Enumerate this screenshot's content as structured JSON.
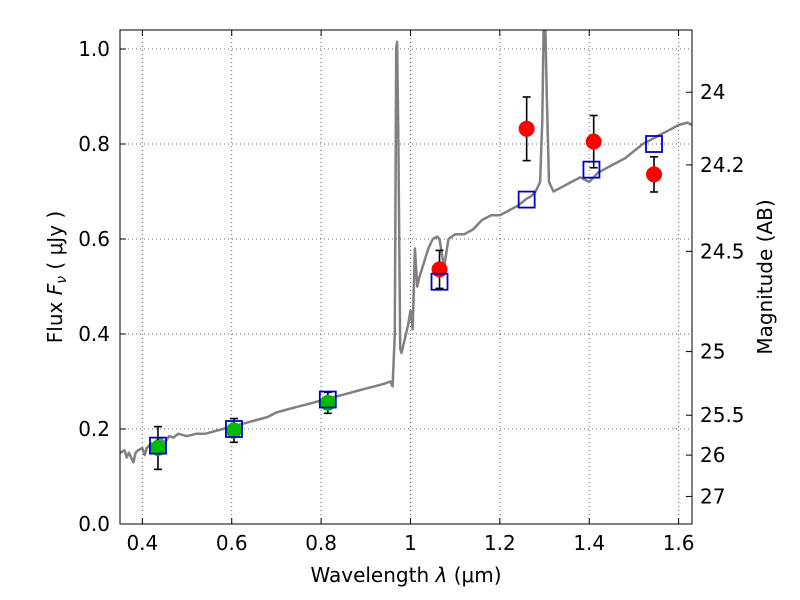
{
  "chart_data": {
    "type": "scatter",
    "title": "",
    "xlabel": "Wavelength",
    "xlabel_symbol": "λ",
    "xlabel_unit": "(μm)",
    "ylabel": "Flux",
    "ylabel_symbol": "F",
    "ylabel_subscript": "ν",
    "ylabel_unit": "( μJy )",
    "ylabel_right": "Magnitude (AB)",
    "xlim": [
      0.35,
      1.63
    ],
    "ylim": [
      0.0,
      1.04
    ],
    "grid": true,
    "x_ticks": [
      0.4,
      0.6,
      0.8,
      1.0,
      1.2,
      1.4,
      1.6
    ],
    "x_tick_labels": [
      "0.4",
      "0.6",
      "0.8",
      "1",
      "1.2",
      "1.4",
      "1.6"
    ],
    "y_ticks": [
      0.0,
      0.2,
      0.4,
      0.6,
      0.8,
      1.0
    ],
    "y_tick_labels": [
      "0.0",
      "0.2",
      "0.4",
      "0.6",
      "0.8",
      "1.0"
    ],
    "right_ticks": [
      {
        "label": "24",
        "flux": 0.909
      },
      {
        "label": "24.2",
        "flux": 0.756
      },
      {
        "label": "24.5",
        "flux": 0.574
      },
      {
        "label": "25",
        "flux": 0.363
      },
      {
        "label": "25.5",
        "flux": 0.229
      },
      {
        "label": "26",
        "flux": 0.145
      },
      {
        "label": "27",
        "flux": 0.058
      }
    ],
    "series": [
      {
        "name": "",
        "kind": "line",
        "color": "#808080",
        "points": [
          [
            0.35,
            0.15
          ],
          [
            0.36,
            0.155
          ],
          [
            0.365,
            0.14
          ],
          [
            0.37,
            0.15
          ],
          [
            0.38,
            0.13
          ],
          [
            0.385,
            0.15
          ],
          [
            0.39,
            0.155
          ],
          [
            0.4,
            0.16
          ],
          [
            0.405,
            0.145
          ],
          [
            0.41,
            0.16
          ],
          [
            0.42,
            0.17
          ],
          [
            0.425,
            0.165
          ],
          [
            0.43,
            0.175
          ],
          [
            0.44,
            0.18
          ],
          [
            0.45,
            0.172
          ],
          [
            0.46,
            0.185
          ],
          [
            0.47,
            0.182
          ],
          [
            0.48,
            0.19
          ],
          [
            0.5,
            0.185
          ],
          [
            0.52,
            0.19
          ],
          [
            0.54,
            0.19
          ],
          [
            0.56,
            0.195
          ],
          [
            0.58,
            0.2
          ],
          [
            0.6,
            0.205
          ],
          [
            0.62,
            0.21
          ],
          [
            0.64,
            0.215
          ],
          [
            0.66,
            0.22
          ],
          [
            0.68,
            0.225
          ],
          [
            0.7,
            0.235
          ],
          [
            0.72,
            0.24
          ],
          [
            0.74,
            0.245
          ],
          [
            0.76,
            0.25
          ],
          [
            0.78,
            0.255
          ],
          [
            0.8,
            0.26
          ],
          [
            0.82,
            0.265
          ],
          [
            0.84,
            0.27
          ],
          [
            0.86,
            0.275
          ],
          [
            0.88,
            0.28
          ],
          [
            0.9,
            0.285
          ],
          [
            0.92,
            0.29
          ],
          [
            0.94,
            0.295
          ],
          [
            0.955,
            0.3
          ],
          [
            0.96,
            0.29
          ],
          [
            0.965,
            0.4
          ],
          [
            0.968,
            1.0
          ],
          [
            0.97,
            1.015
          ],
          [
            0.973,
            0.8
          ],
          [
            0.977,
            0.37
          ],
          [
            0.98,
            0.36
          ],
          [
            0.99,
            0.4
          ],
          [
            0.995,
            0.42
          ],
          [
            1.0,
            0.45
          ],
          [
            1.005,
            0.41
          ],
          [
            1.01,
            0.58
          ],
          [
            1.015,
            0.5
          ],
          [
            1.02,
            0.52
          ],
          [
            1.03,
            0.55
          ],
          [
            1.04,
            0.58
          ],
          [
            1.05,
            0.6
          ],
          [
            1.06,
            0.605
          ],
          [
            1.065,
            0.6
          ],
          [
            1.075,
            0.54
          ],
          [
            1.085,
            0.6
          ],
          [
            1.1,
            0.61
          ],
          [
            1.12,
            0.61
          ],
          [
            1.14,
            0.62
          ],
          [
            1.16,
            0.64
          ],
          [
            1.18,
            0.65
          ],
          [
            1.2,
            0.65
          ],
          [
            1.22,
            0.66
          ],
          [
            1.24,
            0.67
          ],
          [
            1.26,
            0.685
          ],
          [
            1.27,
            0.69
          ],
          [
            1.28,
            0.7
          ],
          [
            1.29,
            0.72
          ],
          [
            1.295,
            0.85
          ],
          [
            1.298,
            1.04
          ],
          [
            1.302,
            1.04
          ],
          [
            1.305,
            0.9
          ],
          [
            1.31,
            0.72
          ],
          [
            1.32,
            0.7
          ],
          [
            1.34,
            0.71
          ],
          [
            1.36,
            0.72
          ],
          [
            1.38,
            0.73
          ],
          [
            1.4,
            0.72
          ],
          [
            1.42,
            0.74
          ],
          [
            1.44,
            0.75
          ],
          [
            1.46,
            0.76
          ],
          [
            1.48,
            0.77
          ],
          [
            1.5,
            0.785
          ],
          [
            1.52,
            0.8
          ],
          [
            1.54,
            0.81
          ],
          [
            1.56,
            0.82
          ],
          [
            1.58,
            0.83
          ],
          [
            1.6,
            0.84
          ],
          [
            1.62,
            0.845
          ],
          [
            1.63,
            0.84
          ]
        ]
      },
      {
        "name": "",
        "kind": "points",
        "marker": "circle",
        "color": "#00bb00",
        "points": [
          {
            "x": 0.435,
            "y": 0.16,
            "err": 0.045
          },
          {
            "x": 0.605,
            "y": 0.197,
            "err": 0.025
          },
          {
            "x": 0.815,
            "y": 0.255,
            "err": 0.022
          }
        ]
      },
      {
        "name": "",
        "kind": "points",
        "marker": "circle",
        "color": "#ff0000",
        "points": [
          {
            "x": 1.065,
            "y": 0.536,
            "err": 0.04
          },
          {
            "x": 1.26,
            "y": 0.832,
            "err": 0.067
          },
          {
            "x": 1.41,
            "y": 0.805,
            "err": 0.055
          },
          {
            "x": 1.545,
            "y": 0.736,
            "err": 0.037
          }
        ]
      },
      {
        "name": "",
        "kind": "points",
        "marker": "square",
        "color": "#0000cc",
        "points": [
          {
            "x": 0.435,
            "y": 0.165
          },
          {
            "x": 0.605,
            "y": 0.2
          },
          {
            "x": 0.815,
            "y": 0.262
          },
          {
            "x": 1.065,
            "y": 0.51
          },
          {
            "x": 1.26,
            "y": 0.683
          },
          {
            "x": 1.405,
            "y": 0.746
          },
          {
            "x": 1.545,
            "y": 0.8
          }
        ]
      }
    ]
  }
}
